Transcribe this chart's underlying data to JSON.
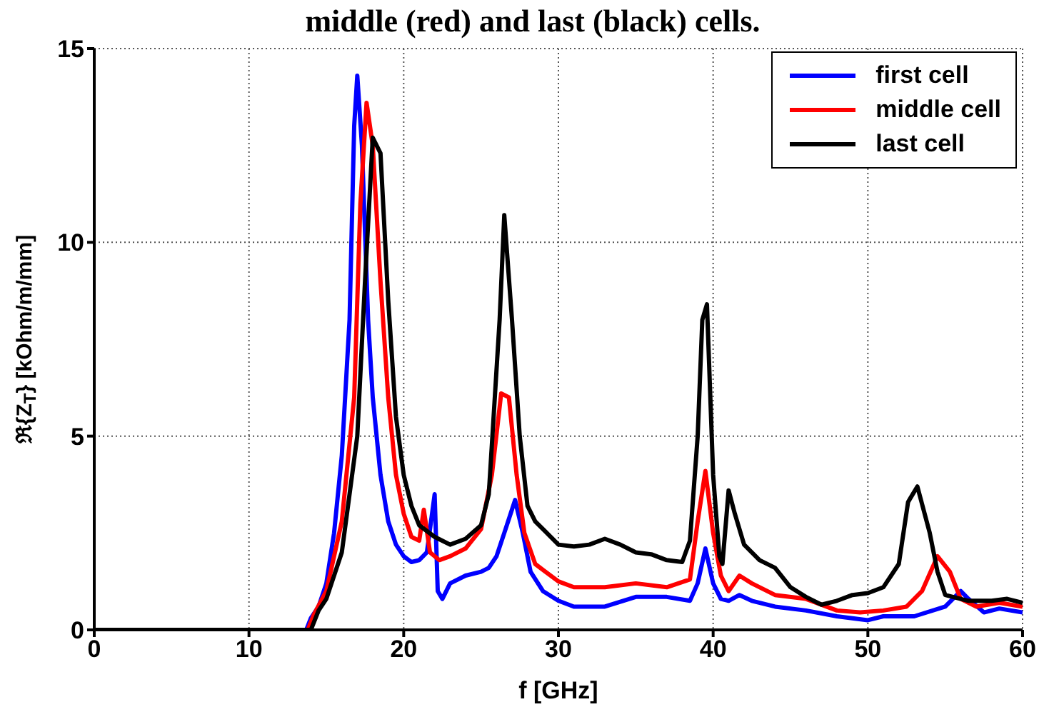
{
  "chart_data": {
    "type": "line",
    "title": "middle (red) and last (black) cells.",
    "xlabel": "f [GHz]",
    "ylabel": "ℜ{Z$_{T}$} [kOhm/m/mm]",
    "xlim": [
      0,
      60
    ],
    "xticks": [
      0,
      10,
      20,
      30,
      40,
      50,
      60
    ],
    "ylim": [
      0,
      15
    ],
    "yticks": [
      0,
      5,
      10,
      15
    ],
    "grid": true,
    "legend": "top right",
    "line_style": "solid",
    "marker": "none",
    "series": [
      {
        "name": "first cell",
        "color": "#0000ff",
        "x": [
          0,
          13.7,
          14,
          14.5,
          15,
          15.5,
          16,
          16.5,
          16.8,
          17,
          17.3,
          17.7,
          18,
          18.5,
          19,
          19.5,
          20,
          20.5,
          21,
          21.5,
          22,
          22.2,
          22.5,
          23,
          24,
          25,
          25.5,
          26,
          26.5,
          27.2,
          27.7,
          28.2,
          29,
          30,
          31,
          33,
          35,
          37,
          38.5,
          39,
          39.5,
          40,
          40.5,
          41,
          41.7,
          42.5,
          44,
          46,
          48,
          50,
          51,
          53,
          55,
          56,
          56.5,
          57.5,
          58.5,
          60
        ],
        "values": [
          0,
          0,
          0.3,
          0.6,
          1.2,
          2.5,
          4.5,
          8,
          13,
          14.3,
          12.5,
          8,
          6,
          4,
          2.8,
          2.2,
          1.9,
          1.75,
          1.8,
          2,
          3.5,
          1.0,
          0.8,
          1.2,
          1.4,
          1.5,
          1.6,
          1.9,
          2.5,
          3.35,
          2.5,
          1.5,
          1.0,
          0.75,
          0.6,
          0.6,
          0.85,
          0.85,
          0.75,
          1.2,
          2.1,
          1.2,
          0.8,
          0.75,
          0.9,
          0.75,
          0.6,
          0.5,
          0.35,
          0.25,
          0.35,
          0.35,
          0.6,
          1.0,
          0.8,
          0.45,
          0.55,
          0.45
        ]
      },
      {
        "name": "middle cell",
        "color": "#ff0000",
        "x": [
          0,
          13.8,
          14.2,
          15,
          16,
          16.8,
          17.2,
          17.6,
          18,
          18.5,
          19,
          19.5,
          20,
          20.5,
          21,
          21.3,
          21.7,
          22.3,
          23,
          24,
          25,
          25.7,
          26.3,
          26.8,
          27.3,
          27.8,
          28.5,
          30,
          31,
          33,
          35,
          37,
          38.5,
          39,
          39.5,
          40,
          40.5,
          41,
          41.7,
          42.5,
          44,
          46,
          48,
          49.5,
          51,
          52.5,
          53.5,
          54.5,
          55.3,
          56,
          57,
          58.5,
          60
        ],
        "values": [
          0,
          0,
          0.4,
          1.0,
          2.8,
          6,
          11,
          13.6,
          12.5,
          9,
          6,
          4,
          3,
          2.4,
          2.3,
          3.1,
          2.0,
          1.8,
          1.9,
          2.1,
          2.6,
          4,
          6.1,
          6,
          4,
          2.5,
          1.7,
          1.25,
          1.1,
          1.1,
          1.2,
          1.1,
          1.3,
          2.8,
          4.1,
          2.5,
          1.4,
          1.0,
          1.4,
          1.2,
          0.9,
          0.8,
          0.5,
          0.45,
          0.5,
          0.6,
          1.0,
          1.9,
          1.5,
          0.8,
          0.6,
          0.7,
          0.6
        ]
      },
      {
        "name": "last cell",
        "color": "#000000",
        "x": [
          0,
          14,
          14.5,
          15,
          16,
          17,
          17.5,
          18,
          18.5,
          19,
          19.5,
          20,
          20.5,
          21,
          22,
          23,
          24,
          25,
          25.5,
          26.2,
          26.5,
          27,
          27.5,
          28,
          28.5,
          30,
          31,
          32,
          33,
          34,
          35,
          36,
          37,
          38,
          38.5,
          39,
          39.3,
          39.6,
          40,
          40.4,
          40.6,
          41,
          41.4,
          42,
          43,
          44,
          45,
          46,
          47,
          48,
          49,
          50,
          51,
          52,
          52.6,
          53.2,
          54,
          54.5,
          55,
          56.5,
          57,
          58,
          59,
          60
        ],
        "values": [
          0,
          0,
          0.5,
          0.8,
          2,
          5,
          9,
          12.7,
          12.3,
          8.5,
          5.5,
          4,
          3.2,
          2.7,
          2.4,
          2.2,
          2.35,
          2.7,
          3.5,
          8,
          10.7,
          8,
          5,
          3.2,
          2.8,
          2.2,
          2.15,
          2.2,
          2.35,
          2.2,
          2.0,
          1.95,
          1.8,
          1.75,
          2.3,
          5,
          8,
          8.4,
          4,
          1.9,
          1.7,
          3.6,
          3,
          2.2,
          1.8,
          1.6,
          1.1,
          0.85,
          0.65,
          0.75,
          0.9,
          0.95,
          1.1,
          1.7,
          3.3,
          3.7,
          2.5,
          1.5,
          0.9,
          0.75,
          0.75,
          0.75,
          0.8,
          0.7
        ]
      }
    ]
  }
}
